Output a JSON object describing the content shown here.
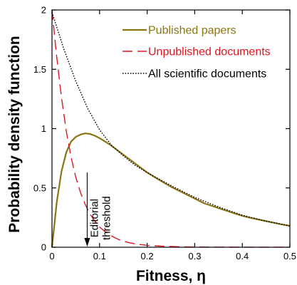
{
  "chart_data": {
    "type": "line",
    "xlabel": "Fitness, η",
    "ylabel": "Probability density function",
    "xlim": [
      0,
      0.5
    ],
    "ylim": [
      0,
      2
    ],
    "x_ticks": [
      "0",
      "0.1",
      "0.2",
      "0.3",
      "0.4",
      "0.5"
    ],
    "y_ticks": [
      "0",
      "0.5",
      "1",
      "1.5",
      "2"
    ],
    "grid": false,
    "legend_position": "top-right",
    "series": [
      {
        "name": "Published papers",
        "color": "#8B7412",
        "style": "solid",
        "x": [
          0,
          0.01,
          0.02,
          0.03,
          0.04,
          0.05,
          0.06,
          0.07,
          0.08,
          0.09,
          0.1,
          0.12,
          0.14,
          0.16,
          0.18,
          0.2,
          0.22,
          0.25,
          0.28,
          0.3,
          0.32,
          0.35,
          0.38,
          0.4,
          0.42,
          0.45,
          0.48,
          0.5
        ],
        "y": [
          0,
          0.38,
          0.64,
          0.8,
          0.89,
          0.93,
          0.95,
          0.96,
          0.955,
          0.94,
          0.92,
          0.87,
          0.81,
          0.75,
          0.69,
          0.63,
          0.58,
          0.51,
          0.45,
          0.41,
          0.37,
          0.33,
          0.29,
          0.265,
          0.245,
          0.22,
          0.195,
          0.18
        ]
      },
      {
        "name": "Unpublished documents",
        "color": "#e0141e",
        "style": "dashed",
        "x": [
          0,
          0.01,
          0.02,
          0.03,
          0.04,
          0.05,
          0.06,
          0.07,
          0.08,
          0.09,
          0.1,
          0.12,
          0.14,
          0.16,
          0.18,
          0.2,
          0.23,
          0.26,
          0.3,
          0.35,
          0.4,
          0.45,
          0.5
        ],
        "y": [
          2.0,
          1.6,
          1.26,
          0.98,
          0.76,
          0.59,
          0.46,
          0.36,
          0.28,
          0.22,
          0.17,
          0.105,
          0.065,
          0.04,
          0.025,
          0.016,
          0.009,
          0.005,
          0.002,
          0.001,
          0.0005,
          0.0002,
          0.0001
        ]
      },
      {
        "name": "All scientific documents",
        "color": "#000000",
        "style": "dotted",
        "x": [
          0,
          0.025,
          0.05,
          0.075,
          0.1,
          0.125,
          0.15,
          0.175,
          0.2,
          0.25,
          0.3,
          0.35,
          0.4,
          0.45,
          0.5
        ],
        "y": [
          1.98,
          1.67,
          1.4,
          1.17,
          0.99,
          0.86,
          0.77,
          0.69,
          0.63,
          0.52,
          0.42,
          0.34,
          0.27,
          0.22,
          0.18
        ]
      }
    ],
    "annotations": [
      {
        "text": "Editorial threshold",
        "lines": [
          "Editorial",
          "threshold"
        ],
        "x": 0.074,
        "y_from": 0.63,
        "y_to": 0.0
      }
    ]
  }
}
